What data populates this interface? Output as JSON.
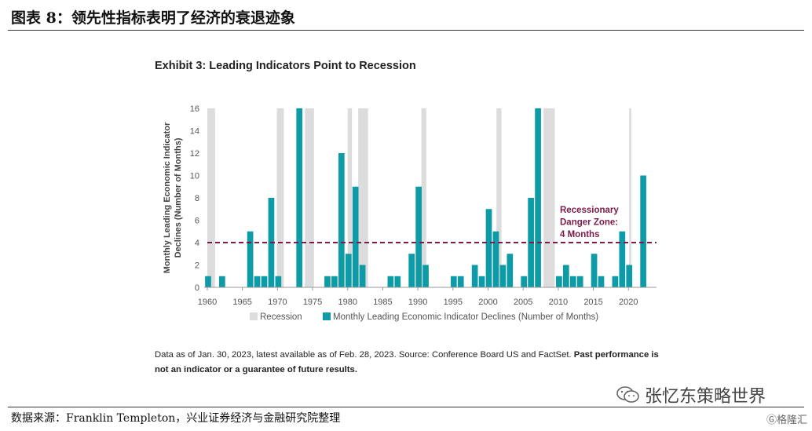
{
  "figure_title": "图表 8：领先性指标表明了经济的衰退迹象",
  "exhibit_title": "Exhibit 3: Leading Indicators Point to Recession",
  "note_text": "Data as of Jan. 30, 2023, latest available as of Feb. 28, 2023. Source: Conference Board US and FactSet. ",
  "note_bold": "Past performance is not an indicator or a guarantee of future results.",
  "source_text": "数据来源：Franklin Templeton，兴业证券经济与金融研究院整理",
  "wechat_account": "张忆东策略世界",
  "watermark": "格隆汇",
  "colors": {
    "bar": "#0c9ba7",
    "recession": "#dcdcdc",
    "danger_line": "#7b1a4a",
    "danger_text": "#7b1a4a"
  },
  "chart_data": {
    "type": "bar",
    "title": "Exhibit 3: Leading Indicators Point to Recession",
    "ylabel": "Monthly Leading Economic Indicator Declines (Number of Months)",
    "xlabel": "",
    "xlim": [
      1960,
      2024
    ],
    "ylim": [
      0,
      16
    ],
    "x_ticks": [
      1960,
      1965,
      1970,
      1975,
      1980,
      1985,
      1990,
      1995,
      2000,
      2005,
      2010,
      2015,
      2020
    ],
    "y_ticks": [
      0,
      2,
      4,
      6,
      8,
      10,
      12,
      14,
      16
    ],
    "grid": false,
    "legend_placement": "bottom",
    "series": [
      {
        "name": "Monthly Leading Economic Indicator Declines (Number of Months)",
        "x": [
          1960,
          1962,
          1966,
          1967,
          1968,
          1969,
          1970,
          1973,
          1977,
          1978,
          1979,
          1980,
          1981,
          1982,
          1986,
          1987,
          1989,
          1990,
          1991,
          1995,
          1996,
          1998,
          1999,
          2000,
          2001,
          2002,
          2003,
          2005,
          2006,
          2007,
          2010,
          2011,
          2012,
          2013,
          2015,
          2016,
          2018,
          2019,
          2020,
          2022
        ],
        "values": [
          1,
          1,
          5,
          1,
          1,
          8,
          1,
          16,
          1,
          1,
          12,
          3,
          9,
          2,
          1,
          1,
          3,
          9,
          2,
          1,
          1,
          2,
          1,
          7,
          5,
          2,
          3,
          1,
          8,
          16,
          1,
          2,
          1,
          1,
          3,
          1,
          1,
          5,
          2,
          10
        ]
      }
    ],
    "recessions": [
      {
        "name": "Recession",
        "start": 1960.0,
        "end": 1961.1
      },
      {
        "name": "Recession",
        "start": 1969.9,
        "end": 1970.9
      },
      {
        "name": "Recession",
        "start": 1973.9,
        "end": 1975.2
      },
      {
        "name": "Recession",
        "start": 1980.0,
        "end": 1980.6
      },
      {
        "name": "Recession",
        "start": 1981.5,
        "end": 1982.9
      },
      {
        "name": "Recession",
        "start": 1990.5,
        "end": 1991.2
      },
      {
        "name": "Recession",
        "start": 2001.2,
        "end": 2001.9
      },
      {
        "name": "Recession",
        "start": 2007.9,
        "end": 2009.5
      },
      {
        "name": "Recession",
        "start": 2020.1,
        "end": 2020.4
      }
    ],
    "legend": [
      "Recession",
      "Monthly Leading Economic Indicator Declines (Number of Months)"
    ],
    "annotation": {
      "lines": [
        "Recessionary",
        "Danger Zone:",
        "4 Months"
      ],
      "threshold": 4
    }
  }
}
